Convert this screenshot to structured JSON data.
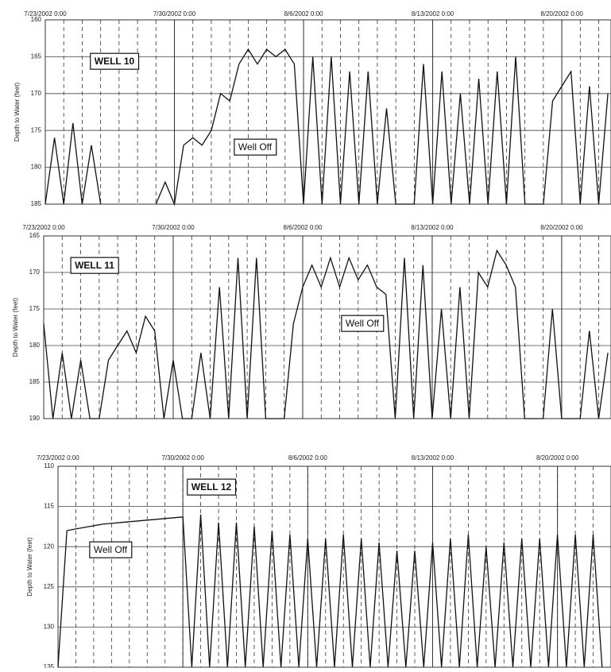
{
  "chart_data": [
    {
      "type": "line",
      "title": "WELL 10",
      "annotation": "Well Off",
      "ylabel": "Depth to Water (feet)",
      "color": "#111111",
      "grid": true,
      "xlim": [
        "2002-07-23 00:00",
        "2002-08-22 16:00"
      ],
      "ylim": [
        185,
        160
      ],
      "yticks": [
        160,
        165,
        170,
        175,
        180,
        185
      ],
      "xticks": [
        {
          "value": "2002-07-23 00:00",
          "label": "7/23/2002 0:00"
        },
        {
          "value": "2002-07-30 00:00",
          "label": "7/30/2002 0:00"
        },
        {
          "value": "2002-08-06 00:00",
          "label": "8/6/2002 0:00"
        },
        {
          "value": "2002-08-13 00:00",
          "label": "8/13/2002 0:00"
        },
        {
          "value": "2002-08-20 00:00",
          "label": "8/20/2002 0:00"
        }
      ],
      "x": [
        "2002-07-23 00:00",
        "2002-07-23 12:00",
        "2002-07-24 00:00",
        "2002-07-24 12:00",
        "2002-07-25 00:00",
        "2002-07-25 12:00",
        "2002-07-26 00:00",
        "2002-07-26 12:00",
        "2002-07-27 00:00",
        "2002-07-27 12:00",
        "2002-07-28 00:00",
        "2002-07-28 12:00",
        "2002-07-29 00:00",
        "2002-07-29 12:00",
        "2002-07-30 00:00",
        "2002-07-30 12:00",
        "2002-07-31 00:00",
        "2002-07-31 12:00",
        "2002-08-01 00:00",
        "2002-08-01 12:00",
        "2002-08-02 00:00",
        "2002-08-02 12:00",
        "2002-08-03 00:00",
        "2002-08-03 12:00",
        "2002-08-04 00:00",
        "2002-08-04 12:00",
        "2002-08-05 00:00",
        "2002-08-05 12:00",
        "2002-08-06 00:00",
        "2002-08-06 12:00",
        "2002-08-07 00:00",
        "2002-08-07 12:00",
        "2002-08-08 00:00",
        "2002-08-08 12:00",
        "2002-08-09 00:00",
        "2002-08-09 12:00",
        "2002-08-10 00:00",
        "2002-08-10 12:00",
        "2002-08-11 00:00",
        "2002-08-11 12:00",
        "2002-08-12 00:00",
        "2002-08-12 12:00",
        "2002-08-13 00:00",
        "2002-08-13 12:00",
        "2002-08-14 00:00",
        "2002-08-14 12:00",
        "2002-08-15 00:00",
        "2002-08-15 12:00",
        "2002-08-16 00:00",
        "2002-08-16 12:00",
        "2002-08-17 00:00",
        "2002-08-17 12:00",
        "2002-08-18 00:00",
        "2002-08-18 12:00",
        "2002-08-19 00:00",
        "2002-08-19 12:00",
        "2002-08-20 00:00",
        "2002-08-20 12:00",
        "2002-08-21 00:00",
        "2002-08-21 12:00",
        "2002-08-22 00:00",
        "2002-08-22 12:00"
      ],
      "values": [
        185,
        176,
        185,
        174,
        185,
        177,
        185,
        null,
        null,
        null,
        null,
        null,
        185,
        182,
        185,
        177,
        176,
        177,
        175,
        170,
        171,
        166,
        164,
        166,
        164,
        165,
        164,
        166,
        185,
        165,
        185,
        165,
        185,
        167,
        185,
        167,
        185,
        172,
        185,
        185,
        185,
        166,
        185,
        167,
        185,
        170,
        185,
        168,
        185,
        167,
        185,
        165,
        185,
        185,
        185,
        171,
        169,
        167,
        185,
        169,
        185,
        170
      ]
    },
    {
      "type": "line",
      "title": "WELL 11",
      "annotation": "Well Off",
      "ylabel": "Depth to Water (feet)",
      "color": "#111111",
      "grid": true,
      "xlim": [
        "2002-07-23 00:00",
        "2002-08-22 16:00"
      ],
      "ylim": [
        190,
        165
      ],
      "yticks": [
        165,
        170,
        175,
        180,
        185,
        190
      ],
      "xticks": [
        {
          "value": "2002-07-23 00:00",
          "label": "7/23/2002 0:00"
        },
        {
          "value": "2002-07-30 00:00",
          "label": "7/30/2002 0:00"
        },
        {
          "value": "2002-08-06 00:00",
          "label": "8/6/2002 0:00"
        },
        {
          "value": "2002-08-13 00:00",
          "label": "8/13/2002 0:00"
        },
        {
          "value": "2002-08-20 00:00",
          "label": "8/20/2002 0:00"
        }
      ],
      "x": [
        "2002-07-23 00:00",
        "2002-07-23 12:00",
        "2002-07-24 00:00",
        "2002-07-24 12:00",
        "2002-07-25 00:00",
        "2002-07-25 12:00",
        "2002-07-26 00:00",
        "2002-07-26 12:00",
        "2002-07-27 00:00",
        "2002-07-27 12:00",
        "2002-07-28 00:00",
        "2002-07-28 12:00",
        "2002-07-29 00:00",
        "2002-07-29 12:00",
        "2002-07-30 00:00",
        "2002-07-30 12:00",
        "2002-07-31 00:00",
        "2002-07-31 12:00",
        "2002-08-01 00:00",
        "2002-08-01 12:00",
        "2002-08-02 00:00",
        "2002-08-02 12:00",
        "2002-08-03 00:00",
        "2002-08-03 12:00",
        "2002-08-04 00:00",
        "2002-08-04 12:00",
        "2002-08-05 00:00",
        "2002-08-05 12:00",
        "2002-08-06 00:00",
        "2002-08-06 12:00",
        "2002-08-07 00:00",
        "2002-08-07 12:00",
        "2002-08-08 00:00",
        "2002-08-08 12:00",
        "2002-08-09 00:00",
        "2002-08-09 12:00",
        "2002-08-10 00:00",
        "2002-08-10 12:00",
        "2002-08-11 00:00",
        "2002-08-11 12:00",
        "2002-08-12 00:00",
        "2002-08-12 12:00",
        "2002-08-13 00:00",
        "2002-08-13 12:00",
        "2002-08-14 00:00",
        "2002-08-14 12:00",
        "2002-08-15 00:00",
        "2002-08-15 12:00",
        "2002-08-16 00:00",
        "2002-08-16 12:00",
        "2002-08-17 00:00",
        "2002-08-17 12:00",
        "2002-08-18 00:00",
        "2002-08-18 12:00",
        "2002-08-19 00:00",
        "2002-08-19 12:00",
        "2002-08-20 00:00",
        "2002-08-20 12:00",
        "2002-08-21 00:00",
        "2002-08-21 12:00",
        "2002-08-22 00:00",
        "2002-08-22 12:00"
      ],
      "values": [
        177,
        190,
        181,
        190,
        182,
        190,
        190,
        182,
        180,
        178,
        181,
        176,
        178,
        190,
        182,
        190,
        190,
        181,
        190,
        172,
        190,
        168,
        190,
        168,
        190,
        190,
        190,
        177,
        172,
        169,
        172,
        168,
        172,
        168,
        171,
        169,
        172,
        173,
        190,
        168,
        190,
        169,
        190,
        175,
        190,
        172,
        190,
        170,
        172,
        167,
        169,
        172,
        190,
        190,
        190,
        175,
        190,
        190,
        190,
        178,
        190,
        181
      ]
    },
    {
      "type": "line",
      "title": "WELL 12",
      "annotation": "Well Off",
      "ylabel": "Depth to Water (feet)",
      "color": "#111111",
      "grid": true,
      "xlim": [
        "2002-07-23 00:00",
        "2002-08-23 00:00"
      ],
      "ylim": [
        135,
        110
      ],
      "yticks": [
        110,
        115,
        120,
        125,
        130,
        135
      ],
      "xticks": [
        {
          "value": "2002-07-23 00:00",
          "label": "7/23/2002 0:00"
        },
        {
          "value": "2002-07-30 00:00",
          "label": "7/30/2002 0:00"
        },
        {
          "value": "2002-08-06 00:00",
          "label": "8/6/2002 0:00"
        },
        {
          "value": "2002-08-13 00:00",
          "label": "8/13/2002 0:00"
        },
        {
          "value": "2002-08-20 00:00",
          "label": "8/20/2002 0:00"
        }
      ],
      "x": [
        "2002-07-23 00:00",
        "2002-07-23 12:00",
        "2002-07-24 00:00",
        "2002-07-24 12:00",
        "2002-07-25 00:00",
        "2002-07-25 12:00",
        "2002-07-26 00:00",
        "2002-07-26 12:00",
        "2002-07-27 00:00",
        "2002-07-27 12:00",
        "2002-07-28 00:00",
        "2002-07-28 12:00",
        "2002-07-29 00:00",
        "2002-07-29 12:00",
        "2002-07-30 00:00",
        "2002-07-30 12:00",
        "2002-07-31 00:00",
        "2002-07-31 12:00",
        "2002-08-01 00:00",
        "2002-08-01 12:00",
        "2002-08-02 00:00",
        "2002-08-02 12:00",
        "2002-08-03 00:00",
        "2002-08-03 12:00",
        "2002-08-04 00:00",
        "2002-08-04 12:00",
        "2002-08-05 00:00",
        "2002-08-05 12:00",
        "2002-08-06 00:00",
        "2002-08-06 12:00",
        "2002-08-07 00:00",
        "2002-08-07 12:00",
        "2002-08-08 00:00",
        "2002-08-08 12:00",
        "2002-08-09 00:00",
        "2002-08-09 12:00",
        "2002-08-10 00:00",
        "2002-08-10 12:00",
        "2002-08-11 00:00",
        "2002-08-11 12:00",
        "2002-08-12 00:00",
        "2002-08-12 12:00",
        "2002-08-13 00:00",
        "2002-08-13 12:00",
        "2002-08-14 00:00",
        "2002-08-14 12:00",
        "2002-08-15 00:00",
        "2002-08-15 12:00",
        "2002-08-16 00:00",
        "2002-08-16 12:00",
        "2002-08-17 00:00",
        "2002-08-17 12:00",
        "2002-08-18 00:00",
        "2002-08-18 12:00",
        "2002-08-19 00:00",
        "2002-08-19 12:00",
        "2002-08-20 00:00",
        "2002-08-20 12:00",
        "2002-08-21 00:00",
        "2002-08-21 12:00",
        "2002-08-22 00:00",
        "2002-08-22 12:00"
      ],
      "values": [
        135,
        118,
        117.8,
        117.6,
        117.4,
        117.2,
        117.1,
        117,
        116.9,
        116.8,
        116.7,
        116.6,
        116.5,
        116.4,
        116.3,
        135,
        116,
        135,
        117,
        135,
        117,
        135,
        117.5,
        135,
        118,
        135,
        118.5,
        135,
        119,
        135,
        119,
        135,
        118.5,
        135,
        119,
        135,
        119.5,
        135,
        120.5,
        135,
        120.5,
        135,
        119.5,
        135,
        119,
        135,
        118.5,
        135,
        120,
        135,
        119.5,
        135,
        119,
        135,
        119,
        135,
        118.5,
        135,
        118.5,
        135,
        118.5,
        135
      ]
    }
  ]
}
